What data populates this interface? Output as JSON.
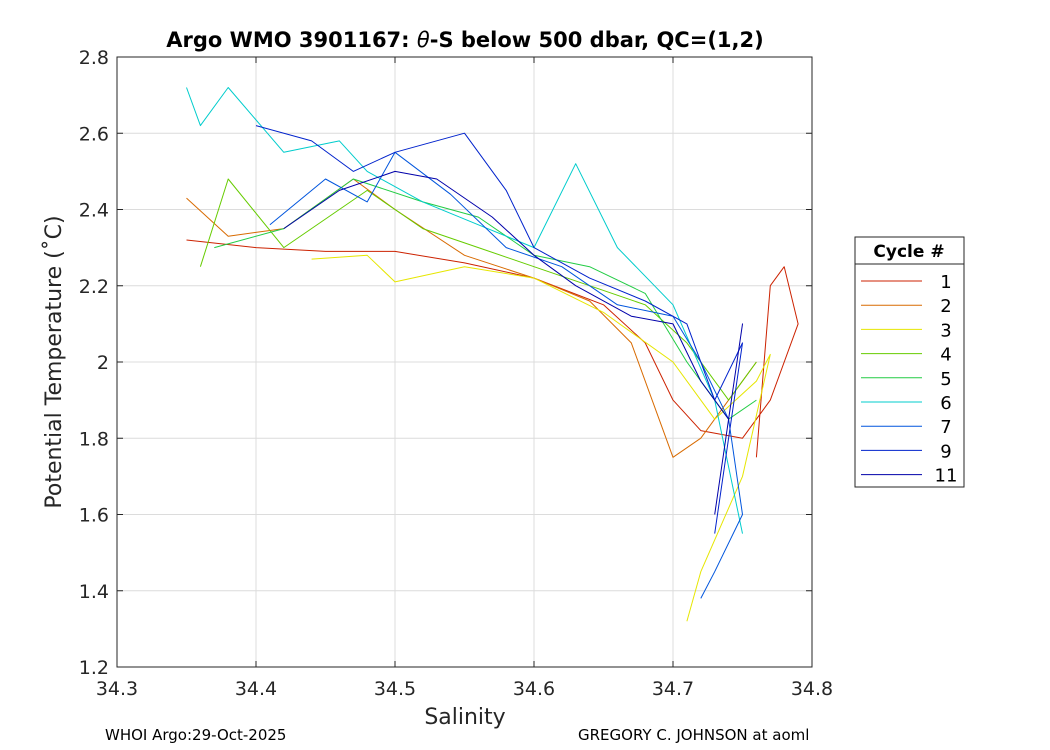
{
  "chart_data": {
    "type": "line",
    "title_prefix": "Argo WMO 3901167: ",
    "title_symbol": "θ",
    "title_suffix": "-S below 500 dbar,  QC=(1,2)",
    "xlabel": "Salinity",
    "ylabel": "Potential Temperature (˚C)",
    "xlim": [
      34.3,
      34.8
    ],
    "ylim": [
      1.2,
      2.8
    ],
    "xticks": [
      "34.3",
      "34.4",
      "34.5",
      "34.6",
      "34.7",
      "34.8"
    ],
    "yticks": [
      "1.2",
      "1.4",
      "1.6",
      "1.8",
      "2",
      "2.2",
      "2.4",
      "2.6",
      "2.8"
    ],
    "grid": true,
    "legend": {
      "title": "Cycle #",
      "placement": "outside-right"
    },
    "series": [
      {
        "name": "1",
        "color": "#cc2200",
        "x": [
          34.35,
          34.4,
          34.45,
          34.5,
          34.55,
          34.6,
          34.65,
          34.68,
          34.7,
          34.72,
          34.75,
          34.77,
          34.79,
          34.78,
          34.77,
          34.76
        ],
        "y": [
          2.32,
          2.3,
          2.29,
          2.29,
          2.26,
          2.22,
          2.15,
          2.05,
          1.9,
          1.82,
          1.8,
          1.9,
          2.1,
          2.25,
          2.2,
          1.75
        ]
      },
      {
        "name": "2",
        "color": "#d86a00",
        "x": [
          34.35,
          34.38,
          34.42,
          34.47,
          34.5,
          34.55,
          34.6,
          34.64,
          34.67,
          34.69,
          34.7,
          34.72,
          34.74,
          34.76
        ],
        "y": [
          2.43,
          2.33,
          2.35,
          2.48,
          2.4,
          2.28,
          2.22,
          2.16,
          2.05,
          1.85,
          1.75,
          1.8,
          1.9,
          2.0
        ]
      },
      {
        "name": "3",
        "color": "#e6e600",
        "x": [
          34.44,
          34.48,
          34.5,
          34.55,
          34.6,
          34.65,
          34.7,
          34.73,
          34.76,
          34.77,
          34.75,
          34.72,
          34.71
        ],
        "y": [
          2.27,
          2.28,
          2.21,
          2.25,
          2.22,
          2.13,
          2.0,
          1.85,
          1.95,
          2.02,
          1.7,
          1.45,
          1.32
        ]
      },
      {
        "name": "4",
        "color": "#66cc00",
        "x": [
          34.36,
          34.38,
          34.42,
          34.48,
          34.52,
          34.56,
          34.6,
          34.64,
          34.68,
          34.71,
          34.74,
          34.76
        ],
        "y": [
          2.25,
          2.48,
          2.3,
          2.45,
          2.35,
          2.3,
          2.25,
          2.2,
          2.15,
          2.05,
          1.9,
          2.0
        ]
      },
      {
        "name": "5",
        "color": "#22cc44",
        "x": [
          34.37,
          34.42,
          34.47,
          34.52,
          34.56,
          34.6,
          34.64,
          34.68,
          34.71,
          34.74,
          34.76
        ],
        "y": [
          2.3,
          2.35,
          2.48,
          2.42,
          2.38,
          2.28,
          2.25,
          2.18,
          2.0,
          1.85,
          1.9
        ]
      },
      {
        "name": "6",
        "color": "#00cccc",
        "x": [
          34.35,
          34.36,
          34.38,
          34.42,
          34.46,
          34.48,
          34.52,
          34.56,
          34.6,
          34.63,
          34.66,
          34.7,
          34.73,
          34.75
        ],
        "y": [
          2.72,
          2.62,
          2.72,
          2.55,
          2.58,
          2.5,
          2.42,
          2.36,
          2.3,
          2.52,
          2.3,
          2.15,
          1.9,
          1.55
        ]
      },
      {
        "name": "7",
        "color": "#0055dd",
        "x": [
          34.41,
          34.45,
          34.48,
          34.5,
          34.54,
          34.58,
          34.62,
          34.66,
          34.7,
          34.72,
          34.74,
          34.75,
          34.73,
          34.72
        ],
        "y": [
          2.36,
          2.48,
          2.42,
          2.55,
          2.44,
          2.3,
          2.25,
          2.15,
          2.12,
          2.0,
          1.85,
          1.6,
          1.45,
          1.38
        ]
      },
      {
        "name": "9",
        "color": "#0022cc",
        "x": [
          34.4,
          34.44,
          34.47,
          34.5,
          34.55,
          34.58,
          34.6,
          34.64,
          34.68,
          34.71,
          34.73,
          34.75,
          34.74,
          34.73
        ],
        "y": [
          2.62,
          2.58,
          2.5,
          2.55,
          2.6,
          2.45,
          2.3,
          2.22,
          2.16,
          2.1,
          1.9,
          2.05,
          1.8,
          1.55
        ]
      },
      {
        "name": "11",
        "color": "#0000aa",
        "x": [
          34.42,
          34.46,
          34.5,
          34.53,
          34.57,
          34.6,
          34.63,
          34.67,
          34.7,
          34.72,
          34.74,
          34.75,
          34.73
        ],
        "y": [
          2.35,
          2.45,
          2.5,
          2.48,
          2.38,
          2.28,
          2.2,
          2.12,
          2.1,
          1.95,
          1.85,
          2.1,
          1.6
        ]
      }
    ]
  },
  "footer": {
    "left": "WHOI Argo:29-Oct-2025",
    "right": "GREGORY C. JOHNSON at aoml"
  }
}
